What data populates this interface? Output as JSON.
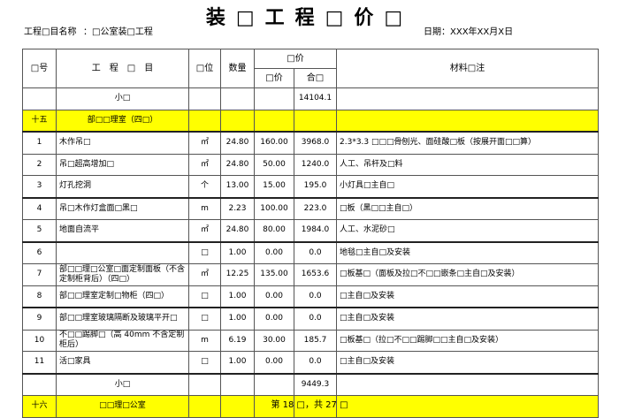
{
  "title": "装□工程□价□",
  "project_label": "工程□目名称",
  "project_name": "：□公室装□工程",
  "date": "日期：XXX年XX月X日",
  "headers": {
    "no": "□号",
    "name": "工　程　□　目",
    "unit": "□位",
    "qty": "数量",
    "price_group": "□价",
    "unit_price": "□价",
    "total": "合□",
    "remark": "材料□注"
  },
  "rows": [
    {
      "type": "subtotal",
      "no": "",
      "name": "小□",
      "unit": "",
      "qty": "",
      "price": "",
      "total": "14104.1",
      "remark": ""
    },
    {
      "type": "section",
      "no": "十五",
      "name": "部□□理室（四□）",
      "unit": "",
      "qty": "",
      "price": "",
      "total": "",
      "remark": ""
    },
    {
      "type": "item",
      "no": "1",
      "name": "木作吊□",
      "unit": "㎡",
      "qty": "24.80",
      "price": "160.00",
      "total": "3968.0",
      "remark": "2.3*3.3 □□□骨刨光、面硅酸□板（按展开面□□算）"
    },
    {
      "type": "item",
      "no": "2",
      "name": "吊□超高增加□",
      "unit": "㎡",
      "qty": "24.80",
      "price": "50.00",
      "total": "1240.0",
      "remark": "人工、吊杆及□料"
    },
    {
      "type": "item",
      "no": "3",
      "name": "灯孔挖洞",
      "unit": "个",
      "qty": "13.00",
      "price": "15.00",
      "total": "195.0",
      "remark": "小灯具□主自□"
    },
    {
      "type": "item",
      "no": "4",
      "name": "吊□木作灯盒面□黑□",
      "unit": "m",
      "qty": "2.23",
      "price": "100.00",
      "total": "223.0",
      "remark": "□板（黑□□主自□）"
    },
    {
      "type": "item",
      "no": "5",
      "name": "地面自流平",
      "unit": "㎡",
      "qty": "24.80",
      "price": "80.00",
      "total": "1984.0",
      "remark": "人工、水泥砂□"
    },
    {
      "type": "item",
      "no": "6",
      "name": "",
      "unit": "□",
      "qty": "1.00",
      "price": "0.00",
      "total": "0.0",
      "remark": "地毯□主自□及安装"
    },
    {
      "type": "item",
      "no": "7",
      "name": "部□□理□公室□面定制面板（不含定制柜背后）（四□）",
      "unit": "㎡",
      "qty": "12.25",
      "price": "135.00",
      "total": "1653.6",
      "remark": "□板基□（面板及拉□不□□嵌条□主自□及安装）"
    },
    {
      "type": "item",
      "no": "8",
      "name": "部□□理室定制□物柜（四□）",
      "unit": "□",
      "qty": "1.00",
      "price": "0.00",
      "total": "0.0",
      "remark": "□主自□及安装"
    },
    {
      "type": "item",
      "no": "9",
      "name": "部□□理室玻璃隔断及玻璃平开□",
      "unit": "□",
      "qty": "1.00",
      "price": "0.00",
      "total": "0.0",
      "remark": "□主自□及安装"
    },
    {
      "type": "item",
      "no": "10",
      "name": "不□□踢脚□（高 40mm 不含定制柜后）",
      "unit": "m",
      "qty": "6.19",
      "price": "30.00",
      "total": "185.7",
      "remark": "□板基□（拉□不□□踢脚□□主自□及安装）"
    },
    {
      "type": "item",
      "no": "11",
      "name": "活□家具",
      "unit": "□",
      "qty": "1.00",
      "price": "0.00",
      "total": "0.0",
      "remark": "□主自□及安装"
    },
    {
      "type": "subtotal",
      "no": "",
      "name": "小□",
      "unit": "",
      "qty": "",
      "price": "",
      "total": "9449.3",
      "remark": ""
    },
    {
      "type": "section",
      "no": "十六",
      "name": "□□理□公室",
      "unit": "",
      "qty": "",
      "price": "",
      "total": "",
      "remark": ""
    }
  ],
  "footer": "第 18 □，共 27 □",
  "colors": {
    "section_bg": "#ffff00"
  }
}
